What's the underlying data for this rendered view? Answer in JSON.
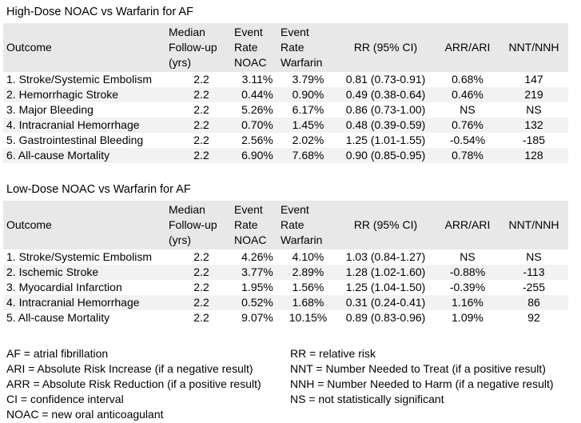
{
  "page": {
    "background": "#ffffff",
    "text_color": "#000000",
    "header_row_bg": "#e8e8e8",
    "stripe_row_bg": "#f2f2f2"
  },
  "tables": [
    {
      "title": "High-Dose NOAC vs Warfarin for AF",
      "headers": {
        "outcome": "Outcome",
        "followup": "Median\nFollow-up\n(yrs)",
        "er_noac": "Event\nRate\nNOAC",
        "er_warfarin": "Event\nRate\nWarfarin",
        "rr": "RR (95% CI)",
        "arr": "ARR/ARI",
        "nnt": "NNT/NNH"
      },
      "rows": [
        [
          "1. Stroke/Systemic Embolism",
          "2.2",
          "3.11%",
          "3.79%",
          "0.81 (0.73-0.91)",
          "0.68%",
          "147"
        ],
        [
          "2. Hemorrhagic Stroke",
          "2.2",
          "0.44%",
          "0.90%",
          "0.49 (0.38-0.64)",
          "0.46%",
          "219"
        ],
        [
          "3. Major Bleeding",
          "2.2",
          "5.26%",
          "6.17%",
          "0.86 (0.73-1.00)",
          "NS",
          "NS"
        ],
        [
          "4. Intracranial Hemorrhage",
          "2.2",
          "0.70%",
          "1.45%",
          "0.48 (0.39-0.59)",
          "0.76%",
          "132"
        ],
        [
          "5. Gastrointestinal Bleeding",
          "2.2",
          "2.56%",
          "2.02%",
          "1.25 (1.01-1.55)",
          "-0.54%",
          "-185"
        ],
        [
          "6. All-cause Mortality",
          "2.2",
          "6.90%",
          "7.68%",
          "0.90 (0.85-0.95)",
          "0.78%",
          "128"
        ]
      ]
    },
    {
      "title": "Low-Dose NOAC vs Warfarin for AF",
      "headers": {
        "outcome": "Outcome",
        "followup": "Median\nFollow-up\n(yrs)",
        "er_noac": "Event\nRate\nNOAC",
        "er_warfarin": "Event\nRate\nWarfarin",
        "rr": "RR (95% CI)",
        "arr": "ARR/ARI",
        "nnt": "NNT/NNH"
      },
      "rows": [
        [
          "1. Stroke/Systemic Embolism",
          "2.2",
          "4.26%",
          "4.10%",
          "1.03 (0.84-1.27)",
          "NS",
          "NS"
        ],
        [
          "2. Ischemic Stroke",
          "2.2",
          "3.77%",
          "2.89%",
          "1.28 (1.02-1.60)",
          "-0.88%",
          "-113"
        ],
        [
          "3. Myocardial Infarction",
          "2.2",
          "1.95%",
          "1.56%",
          "1.25 (1.04-1.50)",
          "-0.39%",
          "-255"
        ],
        [
          "4. Intracranial Hemorrhage",
          "2.2",
          "0.52%",
          "1.68%",
          "0.31 (0.24-0.41)",
          "1.16%",
          "86"
        ],
        [
          "5. All-cause Mortality",
          "2.2",
          "9.07%",
          "10.15%",
          "0.89 (0.83-0.96)",
          "1.09%",
          "92"
        ]
      ]
    }
  ],
  "footnotes": {
    "left": [
      "AF = atrial fibrillation",
      "ARI = Absolute Risk Increase (if a negative result)",
      "ARR = Absolute Risk Reduction (if a positive result)",
      "CI = confidence interval",
      "NOAC = new oral anticoagulant"
    ],
    "right": [
      "RR = relative risk",
      "NNT = Number Needed to Treat (if a positive result)",
      "NNH = Number Needed to Harm (if a negative result)",
      "NS = not statistically significant"
    ]
  }
}
